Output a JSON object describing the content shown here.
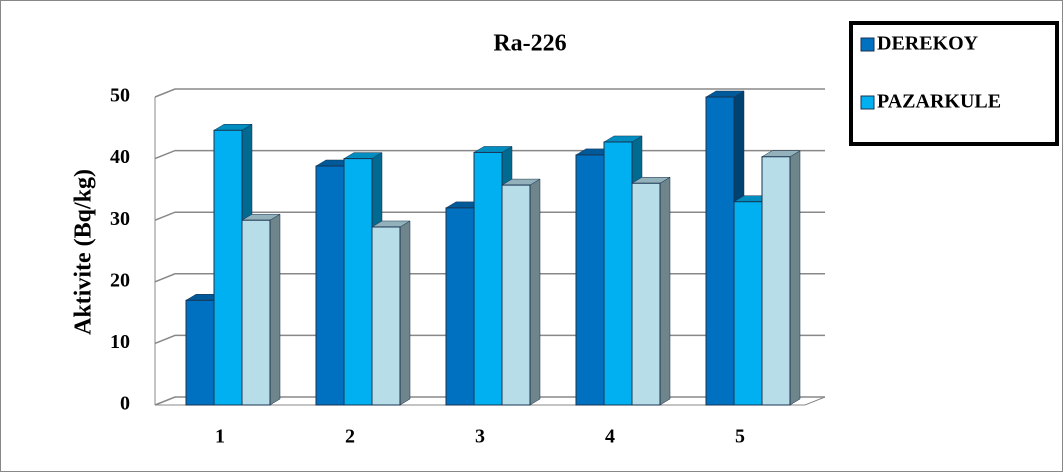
{
  "chart_data": {
    "type": "bar3d",
    "title": "Ra-226",
    "y_label": "Aktivite (Bq/kg)",
    "categories": [
      "1",
      "2",
      "3",
      "4",
      "5"
    ],
    "series": [
      {
        "name": "DEREKOY",
        "color": "#0070c0",
        "values": [
          17,
          38.8,
          32,
          40.6,
          50
        ]
      },
      {
        "name": "PAZARKULE",
        "color": "#00b0f0",
        "values": [
          44.6,
          40,
          41,
          42.7,
          33
        ]
      },
      {
        "color": "#b7dde8",
        "values": [
          30,
          28.9,
          35.7,
          36,
          40.3
        ]
      }
    ],
    "ylim": [
      0,
      50
    ],
    "yticks": [
      0,
      10,
      20,
      30,
      40,
      50
    ],
    "grid": true
  }
}
